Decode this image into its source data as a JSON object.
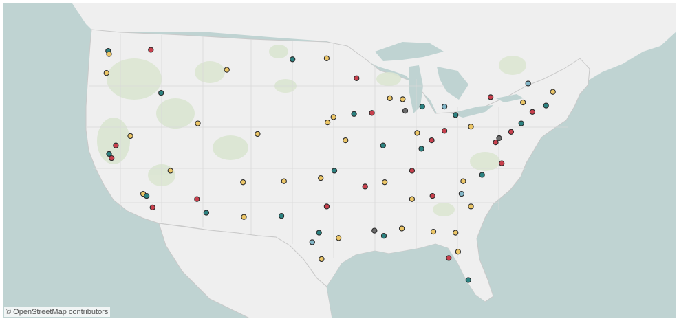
{
  "map": {
    "attribution": "© OpenStreetMap contributors",
    "colors": {
      "water": "#bfd3d2",
      "land": "#efefef",
      "park": "#dbe6d2",
      "border": "#c9c9c9",
      "marker_stroke": "#2b2b2b"
    },
    "series_colors": {
      "red": "#c8404d",
      "yellow": "#ecc667",
      "teal": "#2c8281",
      "lightblue": "#82b6c8",
      "gray": "#6c6c6c"
    }
  },
  "chart_data": {
    "type": "scatter",
    "projection": "albers-like web map of the contiguous United States",
    "points": [
      {
        "lon": -122.4,
        "lat": 47.6,
        "color": "teal"
      },
      {
        "lon": -122.3,
        "lat": 47.3,
        "color": "yellow"
      },
      {
        "lon": -122.6,
        "lat": 45.5,
        "color": "yellow"
      },
      {
        "lon": -122.3,
        "lat": 37.8,
        "color": "teal"
      },
      {
        "lon": -122.0,
        "lat": 37.4,
        "color": "red"
      },
      {
        "lon": -121.5,
        "lat": 38.6,
        "color": "red"
      },
      {
        "lon": -118.3,
        "lat": 34.0,
        "color": "yellow"
      },
      {
        "lon": -117.9,
        "lat": 33.8,
        "color": "teal"
      },
      {
        "lon": -117.2,
        "lat": 32.7,
        "color": "red"
      },
      {
        "lon": -115.1,
        "lat": 36.2,
        "color": "yellow"
      },
      {
        "lon": -112.0,
        "lat": 33.5,
        "color": "red"
      },
      {
        "lon": -111.9,
        "lat": 40.7,
        "color": "yellow"
      },
      {
        "lon": -104.9,
        "lat": 39.7,
        "color": "yellow"
      },
      {
        "lon": -106.6,
        "lat": 35.1,
        "color": "yellow"
      },
      {
        "lon": -97.7,
        "lat": 30.3,
        "color": "teal"
      },
      {
        "lon": -96.8,
        "lat": 32.8,
        "color": "red"
      },
      {
        "lon": -95.4,
        "lat": 29.8,
        "color": "yellow"
      },
      {
        "lon": -98.5,
        "lat": 29.4,
        "color": "lightblue"
      },
      {
        "lon": -93.3,
        "lat": 45.0,
        "color": "red"
      },
      {
        "lon": -87.6,
        "lat": 41.9,
        "color": "gray"
      },
      {
        "lon": -87.9,
        "lat": 43.0,
        "color": "yellow"
      },
      {
        "lon": -83.0,
        "lat": 42.3,
        "color": "lightblue"
      },
      {
        "lon": -81.7,
        "lat": 41.5,
        "color": "teal"
      },
      {
        "lon": -84.5,
        "lat": 39.1,
        "color": "red"
      },
      {
        "lon": -86.2,
        "lat": 39.8,
        "color": "yellow"
      },
      {
        "lon": -90.2,
        "lat": 38.6,
        "color": "teal"
      },
      {
        "lon": -94.6,
        "lat": 39.1,
        "color": "yellow"
      },
      {
        "lon": -86.8,
        "lat": 36.2,
        "color": "red"
      },
      {
        "lon": -84.4,
        "lat": 33.8,
        "color": "red"
      },
      {
        "lon": -86.8,
        "lat": 33.5,
        "color": "yellow"
      },
      {
        "lon": -90.1,
        "lat": 30.0,
        "color": "teal"
      },
      {
        "lon": -80.2,
        "lat": 25.8,
        "color": "teal"
      },
      {
        "lon": -81.4,
        "lat": 28.5,
        "color": "yellow"
      },
      {
        "lon": -82.5,
        "lat": 27.9,
        "color": "red"
      },
      {
        "lon": -81.7,
        "lat": 30.3,
        "color": "yellow"
      },
      {
        "lon": -80.8,
        "lat": 35.2,
        "color": "yellow"
      },
      {
        "lon": -78.6,
        "lat": 35.8,
        "color": "teal"
      },
      {
        "lon": -77.0,
        "lat": 38.9,
        "color": "red"
      },
      {
        "lon": -76.6,
        "lat": 39.3,
        "color": "gray"
      },
      {
        "lon": -75.2,
        "lat": 39.9,
        "color": "red"
      },
      {
        "lon": -74.0,
        "lat": 40.7,
        "color": "teal"
      },
      {
        "lon": -71.1,
        "lat": 42.4,
        "color": "teal"
      },
      {
        "lon": -73.2,
        "lat": 44.5,
        "color": "lightblue"
      },
      {
        "lon": -70.3,
        "lat": 43.7,
        "color": "yellow"
      },
      {
        "lon": -79.9,
        "lat": 40.4,
        "color": "yellow"
      },
      {
        "lon": -77.6,
        "lat": 43.2,
        "color": "red"
      },
      {
        "lon": -73.8,
        "lat": 42.7,
        "color": "yellow"
      },
      {
        "lon": -72.7,
        "lat": 41.8,
        "color": "red"
      },
      {
        "lon": -96.7,
        "lat": 40.8,
        "color": "yellow"
      },
      {
        "lon": -97.5,
        "lat": 35.5,
        "color": "yellow"
      },
      {
        "lon": -95.9,
        "lat": 36.2,
        "color": "teal"
      },
      {
        "lon": -92.3,
        "lat": 34.7,
        "color": "red"
      },
      {
        "lon": -90.0,
        "lat": 35.1,
        "color": "yellow"
      },
      {
        "lon": -96.8,
        "lat": 46.9,
        "color": "yellow"
      },
      {
        "lon": -100.8,
        "lat": 46.8,
        "color": "teal"
      },
      {
        "lon": -106.5,
        "lat": 31.8,
        "color": "yellow"
      },
      {
        "lon": -110.9,
        "lat": 32.2,
        "color": "teal"
      },
      {
        "lon": -116.2,
        "lat": 43.6,
        "color": "teal"
      },
      {
        "lon": -117.4,
        "lat": 47.7,
        "color": "red"
      },
      {
        "lon": -108.5,
        "lat": 45.8,
        "color": "yellow"
      },
      {
        "lon": -119.8,
        "lat": 39.5,
        "color": "yellow"
      },
      {
        "lon": -85.7,
        "lat": 38.3,
        "color": "teal"
      },
      {
        "lon": -83.0,
        "lat": 40.0,
        "color": "red"
      },
      {
        "lon": -89.4,
        "lat": 43.1,
        "color": "yellow"
      },
      {
        "lon": -85.6,
        "lat": 42.3,
        "color": "teal"
      },
      {
        "lon": -76.3,
        "lat": 36.9,
        "color": "red"
      },
      {
        "lon": -79.9,
        "lat": 32.8,
        "color": "yellow"
      },
      {
        "lon": -81.0,
        "lat": 34.0,
        "color": "lightblue"
      },
      {
        "lon": -88.0,
        "lat": 30.7,
        "color": "yellow"
      },
      {
        "lon": -91.2,
        "lat": 30.5,
        "color": "gray"
      },
      {
        "lon": -84.3,
        "lat": 30.4,
        "color": "yellow"
      },
      {
        "lon": -97.4,
        "lat": 27.8,
        "color": "yellow"
      },
      {
        "lon": -101.8,
        "lat": 35.2,
        "color": "yellow"
      },
      {
        "lon": -102.1,
        "lat": 31.9,
        "color": "teal"
      },
      {
        "lon": -93.6,
        "lat": 41.6,
        "color": "teal"
      },
      {
        "lon": -91.5,
        "lat": 41.7,
        "color": "red"
      },
      {
        "lon": -96.0,
        "lat": 41.3,
        "color": "yellow"
      }
    ]
  }
}
